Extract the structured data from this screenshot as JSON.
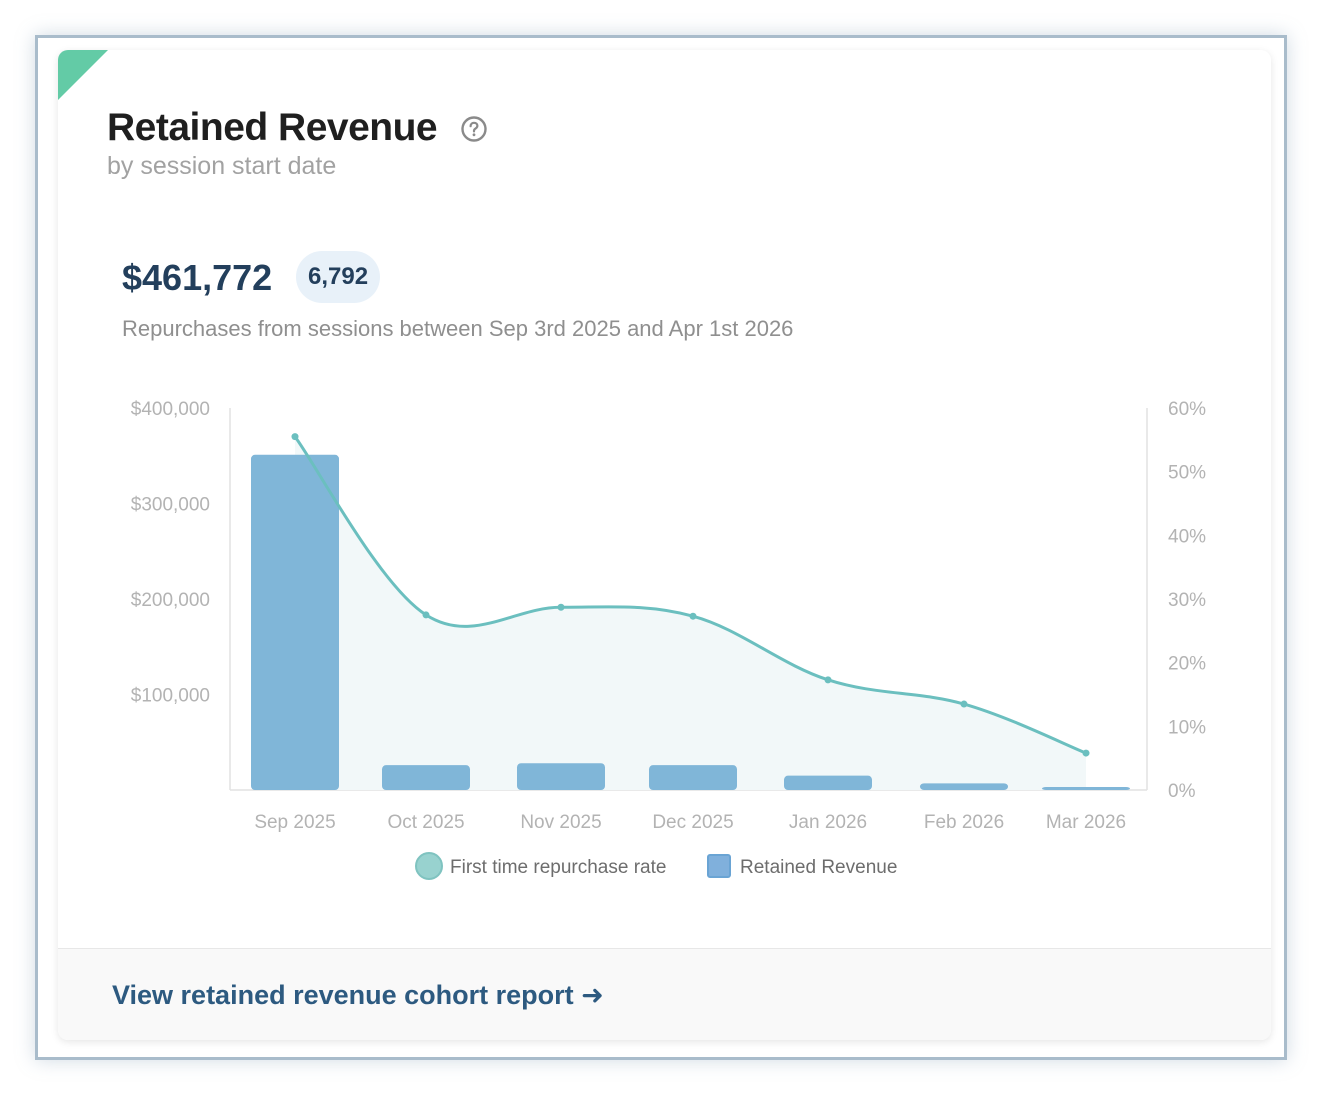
{
  "card": {
    "title": "Retained Revenue",
    "subtitle": "by session start date",
    "help_icon": "question-circle-icon",
    "total_value": "$461,772",
    "count_badge": "6,792",
    "description": "Repurchases from sessions between Sep 3rd 2025 and Apr 1st 2026",
    "footer_link": "View retained revenue cohort report ➜"
  },
  "colors": {
    "accent_corner": "#63cba6",
    "bar": "#80b6d8",
    "line": "#6bbfbf",
    "area_fill": "#f2f8f9",
    "legend_line": "#98d2cf",
    "legend_bar": "#80b0dc",
    "axis_text": "#b3b3b3",
    "title": "#1f1f1f",
    "link": "#2d5a80"
  },
  "chart_data": {
    "type": "bar",
    "categories": [
      "Sep 2025",
      "Oct 2025",
      "Nov 2025",
      "Dec 2025",
      "Jan 2026",
      "Feb 2026",
      "Mar 2026"
    ],
    "series": [
      {
        "name": "Retained Revenue",
        "type": "bar",
        "axis": "left",
        "values": [
          351000,
          26000,
          28000,
          26000,
          15000,
          7000,
          2000
        ]
      },
      {
        "name": "First time repurchase rate",
        "type": "line",
        "axis": "right",
        "values": [
          55.5,
          27.5,
          28.7,
          27.3,
          17.3,
          13.5,
          5.8
        ]
      }
    ],
    "y_left": {
      "ticks": [
        0,
        100000,
        200000,
        300000,
        400000
      ],
      "tick_labels": [
        "",
        "$100,000",
        "$200,000",
        "$300,000",
        "$400,000"
      ],
      "ylim": [
        0,
        400000
      ]
    },
    "y_right": {
      "ticks": [
        0,
        10,
        20,
        30,
        40,
        50,
        60
      ],
      "tick_labels": [
        "0%",
        "10%",
        "20%",
        "30%",
        "40%",
        "50%",
        "60%"
      ],
      "ylim": [
        0,
        60
      ]
    },
    "legend": {
      "position": "bottom-center",
      "items": [
        {
          "label": "First time repurchase rate",
          "marker": "circle"
        },
        {
          "label": "Retained Revenue",
          "marker": "square"
        }
      ]
    },
    "grid": false
  }
}
